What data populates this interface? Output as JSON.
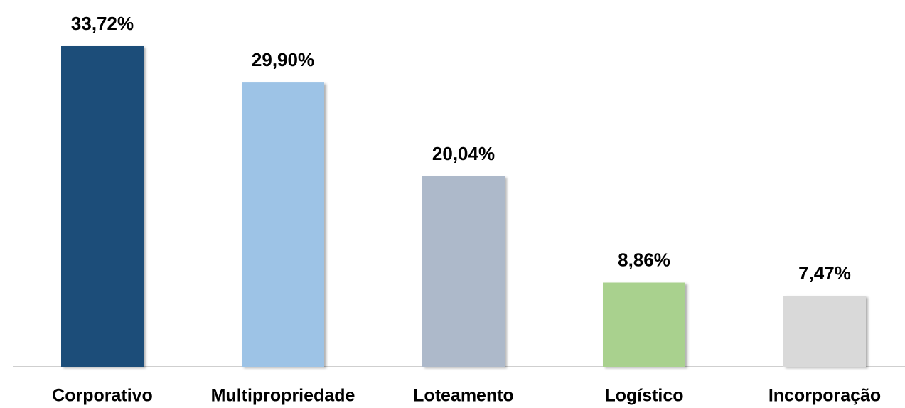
{
  "chart_data": {
    "type": "bar",
    "categories": [
      "Corporativo",
      "Multipropriedade",
      "Loteamento",
      "Logístico",
      "Incorporação"
    ],
    "values": [
      33.72,
      29.9,
      20.04,
      8.86,
      7.47
    ],
    "value_labels": [
      "33,72%",
      "29,90%",
      "20,04%",
      "8,86%",
      "7,47%"
    ],
    "colors": [
      "#1f4e79",
      "#9dc3e6",
      "#adb9ca",
      "#a9d18e",
      "#d9d9d9"
    ]
  }
}
